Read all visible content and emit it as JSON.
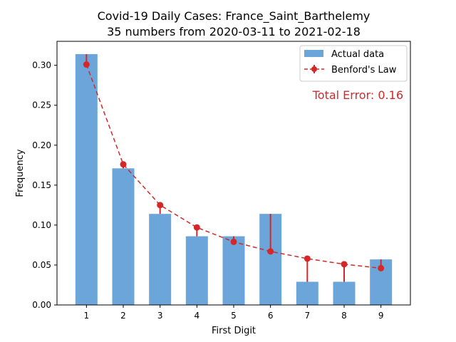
{
  "chart_data": {
    "type": "bar",
    "title": "Covid-19 Daily Cases: France_Saint_Barthelemy",
    "subtitle": "35 numbers from 2020-03-11 to 2021-02-18",
    "xlabel": "First Digit",
    "ylabel": "Frequency",
    "categories": [
      "1",
      "2",
      "3",
      "4",
      "5",
      "6",
      "7",
      "8",
      "9"
    ],
    "x": [
      1,
      2,
      3,
      4,
      5,
      6,
      7,
      8,
      9
    ],
    "series": [
      {
        "name": "Actual data",
        "type": "bar",
        "color": "#5b9bd5",
        "values": [
          0.314,
          0.171,
          0.114,
          0.086,
          0.086,
          0.114,
          0.029,
          0.029,
          0.057
        ]
      },
      {
        "name": "Benford's Law",
        "type": "line",
        "style": "dashed",
        "marker": "circle",
        "color": "#d62728",
        "values": [
          0.301,
          0.176,
          0.125,
          0.097,
          0.079,
          0.067,
          0.058,
          0.051,
          0.046
        ]
      }
    ],
    "ylim": [
      0,
      0.33
    ],
    "yticks": [
      "0.00",
      "0.05",
      "0.10",
      "0.15",
      "0.20",
      "0.25",
      "0.30"
    ],
    "ytick_values": [
      0,
      0.05,
      0.1,
      0.15,
      0.2,
      0.25,
      0.3
    ],
    "grid": false,
    "legend_position": "top-right",
    "annotation": {
      "text": "Total Error: 0.16",
      "color": "#d62728"
    },
    "error_lines": true
  }
}
